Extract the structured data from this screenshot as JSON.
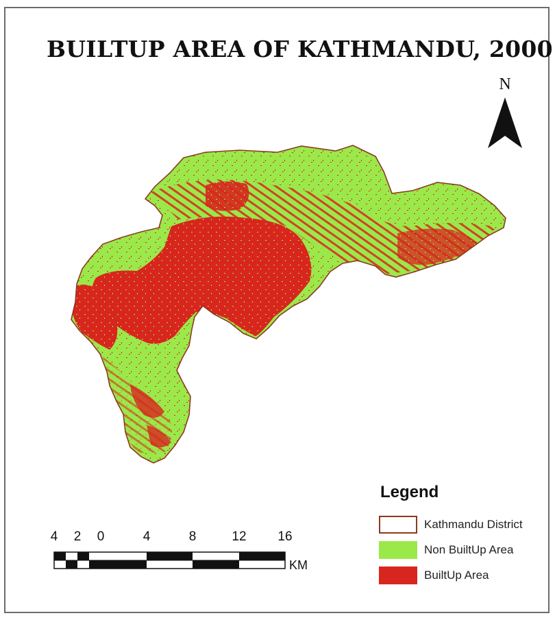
{
  "map": {
    "title": "BUILTUP AREA OF KATHMANDU, 2000",
    "north_label": "N",
    "colors": {
      "non_builtup": "#9be84a",
      "builtup": "#d8261e",
      "boundary": "#8a3a20",
      "frame": "#6b6b6b"
    }
  },
  "legend": {
    "title": "Legend",
    "items": [
      {
        "label": "Kathmandu District",
        "fill": "#ffffff",
        "border": "#8a3a20"
      },
      {
        "label": "Non BuiltUp Area",
        "fill": "#9be84a",
        "border": "#9be84a"
      },
      {
        "label": "BuiltUp Area",
        "fill": "#d8261e",
        "border": "#d8261e"
      }
    ]
  },
  "scale": {
    "ticks": [
      "4",
      "2",
      "0",
      "4",
      "8",
      "12",
      "16"
    ],
    "unit": "KM"
  }
}
